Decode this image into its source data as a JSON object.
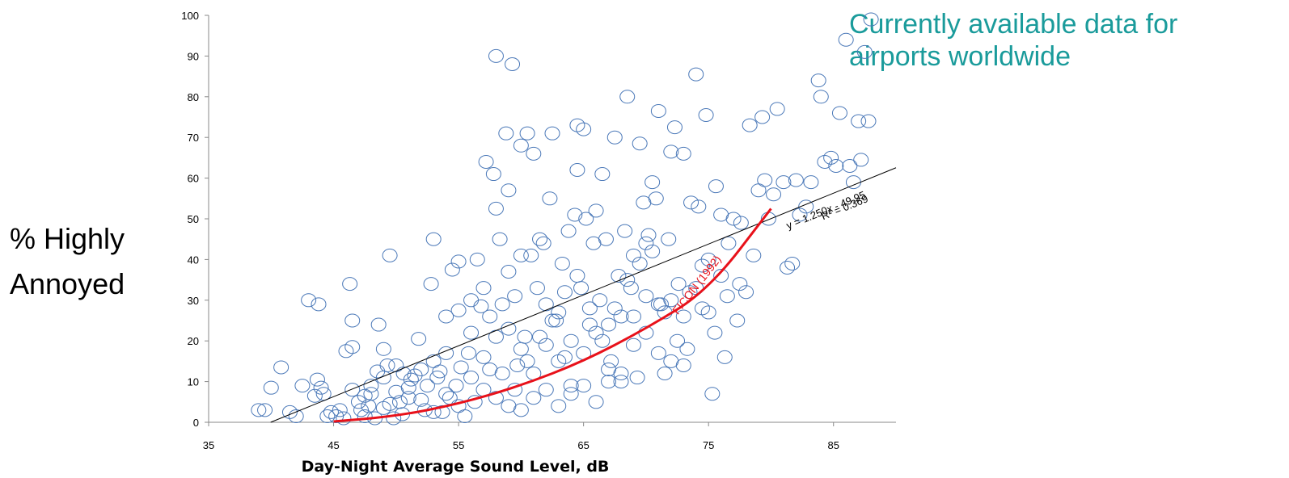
{
  "title_lines": [
    "Currently available data for",
    "airports worldwide"
  ],
  "ylabel_lines": [
    "% Highly",
    "Annoyed"
  ],
  "colors": {
    "title": "#1a9b9b",
    "points": "#4a78b8",
    "fit_line": "#000000",
    "ficon_curve": "#e8111a"
  },
  "chart_data": {
    "type": "scatter",
    "title": "Currently available data for airports worldwide",
    "xlabel": "Day-Night Average Sound Level, dB",
    "ylabel": "% Highly Annoyed",
    "xlim": [
      35,
      90
    ],
    "ylim": [
      0,
      100
    ],
    "x_ticks": [
      35,
      45,
      55,
      65,
      75,
      85
    ],
    "y_ticks": [
      0,
      10,
      20,
      30,
      40,
      50,
      60,
      70,
      80,
      90,
      100
    ],
    "grid": false,
    "marker": "open-circle",
    "regression": {
      "slope": 1.25,
      "intercept": -49.95,
      "equation": "y = 1.250x - 49.95",
      "r2_text": "R² = 0.369"
    },
    "ficon_label": "FICON (1992)",
    "ficon_curve": [
      [
        45,
        0.2
      ],
      [
        50,
        1.5
      ],
      [
        55,
        4.5
      ],
      [
        60,
        9
      ],
      [
        65,
        15
      ],
      [
        70,
        23
      ],
      [
        75,
        32.5
      ],
      [
        80,
        52.5
      ]
    ],
    "points": [
      [
        39,
        3
      ],
      [
        39.5,
        3
      ],
      [
        40,
        8.5
      ],
      [
        40.8,
        13.5
      ],
      [
        41.5,
        2.5
      ],
      [
        42,
        1.5
      ],
      [
        42.5,
        9
      ],
      [
        43,
        30
      ],
      [
        43.5,
        6.5
      ],
      [
        43.8,
        29
      ],
      [
        43.7,
        10.5
      ],
      [
        44,
        8.5
      ],
      [
        44.2,
        7
      ],
      [
        44.5,
        1.5
      ],
      [
        44.8,
        2.5
      ],
      [
        45.2,
        1.5
      ],
      [
        45.5,
        3
      ],
      [
        45.8,
        1
      ],
      [
        46,
        17.5
      ],
      [
        46.3,
        34
      ],
      [
        46.5,
        18.5
      ],
      [
        46.5,
        25
      ],
      [
        47,
        5
      ],
      [
        47.2,
        3
      ],
      [
        47.5,
        1.5
      ],
      [
        47.8,
        4
      ],
      [
        48,
        9
      ],
      [
        48.3,
        1
      ],
      [
        48.6,
        24
      ],
      [
        49,
        3.5
      ],
      [
        49,
        18
      ],
      [
        49.3,
        14
      ],
      [
        49.5,
        41
      ],
      [
        49.8,
        1
      ],
      [
        50,
        7.5
      ],
      [
        50.3,
        5
      ],
      [
        50.6,
        12
      ],
      [
        51,
        8.5
      ],
      [
        51.2,
        10.5
      ],
      [
        51.5,
        11.5
      ],
      [
        51.8,
        20.5
      ],
      [
        52,
        5.5
      ],
      [
        52.3,
        3
      ],
      [
        52.5,
        9
      ],
      [
        52.8,
        34
      ],
      [
        53,
        45
      ],
      [
        53,
        2.5
      ],
      [
        53.3,
        11
      ],
      [
        53.5,
        12.5
      ],
      [
        53.7,
        2.5
      ],
      [
        54,
        17
      ],
      [
        54.3,
        6
      ],
      [
        54.5,
        37.5
      ],
      [
        54.8,
        9
      ],
      [
        55,
        39.5
      ],
      [
        55.2,
        13.5
      ],
      [
        55.5,
        1.5
      ],
      [
        55.8,
        17
      ],
      [
        56,
        22
      ],
      [
        56.3,
        5
      ],
      [
        56.5,
        40
      ],
      [
        56.8,
        28.5
      ],
      [
        57,
        33
      ],
      [
        57.2,
        64
      ],
      [
        57.5,
        26
      ],
      [
        57.5,
        13
      ],
      [
        57.8,
        61
      ],
      [
        58,
        52.5
      ],
      [
        58,
        90
      ],
      [
        58.3,
        45
      ],
      [
        58.5,
        29
      ],
      [
        58.8,
        71
      ],
      [
        59,
        57
      ],
      [
        59,
        37
      ],
      [
        59.3,
        88
      ],
      [
        59.5,
        31
      ],
      [
        59.7,
        14
      ],
      [
        60,
        41
      ],
      [
        60,
        68
      ],
      [
        60.3,
        21
      ],
      [
        60.5,
        71
      ],
      [
        60.8,
        41
      ],
      [
        61,
        66
      ],
      [
        61.3,
        33
      ],
      [
        61.5,
        45
      ],
      [
        61.8,
        44
      ],
      [
        62,
        29
      ],
      [
        62.3,
        55
      ],
      [
        62.5,
        71
      ],
      [
        62.8,
        25
      ],
      [
        63,
        15
      ],
      [
        63.3,
        39
      ],
      [
        63.5,
        16
      ],
      [
        63.8,
        47
      ],
      [
        64,
        9
      ],
      [
        64.3,
        51
      ],
      [
        64.5,
        73
      ],
      [
        64.5,
        62
      ],
      [
        64.8,
        33
      ],
      [
        65,
        72
      ],
      [
        65.2,
        50
      ],
      [
        65.5,
        28
      ],
      [
        65.8,
        44
      ],
      [
        66,
        52
      ],
      [
        66.3,
        30
      ],
      [
        66.5,
        61
      ],
      [
        66.8,
        45
      ],
      [
        67,
        24
      ],
      [
        67.2,
        15
      ],
      [
        67.5,
        70
      ],
      [
        67.8,
        36
      ],
      [
        68,
        26
      ],
      [
        68.3,
        47
      ],
      [
        68.5,
        80
      ],
      [
        68.8,
        33
      ],
      [
        69,
        41
      ],
      [
        69.3,
        11
      ],
      [
        69.5,
        68.5
      ],
      [
        69.8,
        54
      ],
      [
        70,
        44
      ],
      [
        70.2,
        46
      ],
      [
        70.5,
        59
      ],
      [
        70.8,
        55
      ],
      [
        71,
        76.5
      ],
      [
        71.2,
        29
      ],
      [
        71.5,
        12
      ],
      [
        71.8,
        45
      ],
      [
        72,
        66.5
      ],
      [
        72.3,
        72.5
      ],
      [
        72.6,
        34
      ],
      [
        73,
        66
      ],
      [
        73.3,
        18
      ],
      [
        73.6,
        54
      ],
      [
        74,
        85.5
      ],
      [
        74.2,
        53
      ],
      [
        74.5,
        38.5
      ],
      [
        74.8,
        75.5
      ],
      [
        75,
        27
      ],
      [
        75.3,
        7
      ],
      [
        75.6,
        58
      ],
      [
        76,
        51
      ],
      [
        76.3,
        16
      ],
      [
        76.6,
        44
      ],
      [
        77,
        50
      ],
      [
        77.3,
        25
      ],
      [
        77.6,
        49
      ],
      [
        78,
        32
      ],
      [
        78.3,
        73
      ],
      [
        78.6,
        41
      ],
      [
        79,
        57
      ],
      [
        79.3,
        75
      ],
      [
        79.5,
        59.5
      ],
      [
        79.8,
        50
      ],
      [
        80.2,
        56
      ],
      [
        80.5,
        77
      ],
      [
        81,
        59
      ],
      [
        81.3,
        38
      ],
      [
        81.7,
        39
      ],
      [
        82,
        59.5
      ],
      [
        82.3,
        51
      ],
      [
        82.8,
        53
      ],
      [
        83.2,
        59
      ],
      [
        83.8,
        84
      ],
      [
        84,
        80
      ],
      [
        84.3,
        64
      ],
      [
        84.8,
        65
      ],
      [
        85.2,
        63
      ],
      [
        85.5,
        76
      ],
      [
        86,
        94
      ],
      [
        86.3,
        63
      ],
      [
        86.6,
        59
      ],
      [
        87,
        74
      ],
      [
        87.2,
        64.5
      ],
      [
        87.5,
        91
      ],
      [
        87.8,
        74
      ],
      [
        88,
        99
      ],
      [
        54,
        26
      ],
      [
        55,
        27.5
      ],
      [
        56,
        30
      ],
      [
        57,
        16
      ],
      [
        58,
        21
      ],
      [
        59,
        23
      ],
      [
        60,
        18
      ],
      [
        61,
        12
      ],
      [
        62,
        19
      ],
      [
        63,
        27
      ],
      [
        64,
        20
      ],
      [
        65,
        17
      ],
      [
        66,
        22
      ],
      [
        67,
        13
      ],
      [
        68,
        10
      ],
      [
        69,
        19
      ],
      [
        70,
        22
      ],
      [
        71,
        17
      ],
      [
        72,
        15
      ],
      [
        73,
        14
      ],
      [
        52,
        13
      ],
      [
        53,
        15
      ],
      [
        54,
        7
      ],
      [
        55,
        4
      ],
      [
        56,
        11
      ],
      [
        57,
        8
      ],
      [
        58,
        6
      ],
      [
        59,
        4
      ],
      [
        60,
        3
      ],
      [
        61,
        6
      ],
      [
        62,
        8
      ],
      [
        63,
        4
      ],
      [
        64,
        7
      ],
      [
        65,
        9
      ],
      [
        66,
        5
      ],
      [
        67,
        10
      ],
      [
        68,
        12
      ],
      [
        69,
        26
      ],
      [
        70,
        31
      ],
      [
        71,
        29
      ],
      [
        72,
        30
      ],
      [
        73,
        26
      ],
      [
        74,
        33
      ],
      [
        75,
        40
      ],
      [
        76,
        36
      ],
      [
        48,
        7
      ],
      [
        49,
        11
      ],
      [
        50,
        14
      ],
      [
        51,
        6
      ],
      [
        50.5,
        2
      ],
      [
        49.5,
        4.5
      ],
      [
        48.5,
        12.5
      ],
      [
        47.5,
        6.5
      ],
      [
        46.5,
        8
      ],
      [
        58.5,
        12
      ],
      [
        59.5,
        8
      ],
      [
        60.5,
        15
      ],
      [
        61.5,
        21
      ],
      [
        62.5,
        25
      ],
      [
        63.5,
        32
      ],
      [
        64.5,
        36
      ],
      [
        65.5,
        24
      ],
      [
        66.5,
        20
      ],
      [
        67.5,
        28
      ],
      [
        68.5,
        35
      ],
      [
        69.5,
        39
      ],
      [
        70.5,
        42
      ],
      [
        71.5,
        27
      ],
      [
        72.5,
        20
      ],
      [
        73.5,
        32
      ],
      [
        74.5,
        28
      ],
      [
        75.5,
        22
      ],
      [
        76.5,
        31
      ],
      [
        77.5,
        34
      ]
    ]
  }
}
